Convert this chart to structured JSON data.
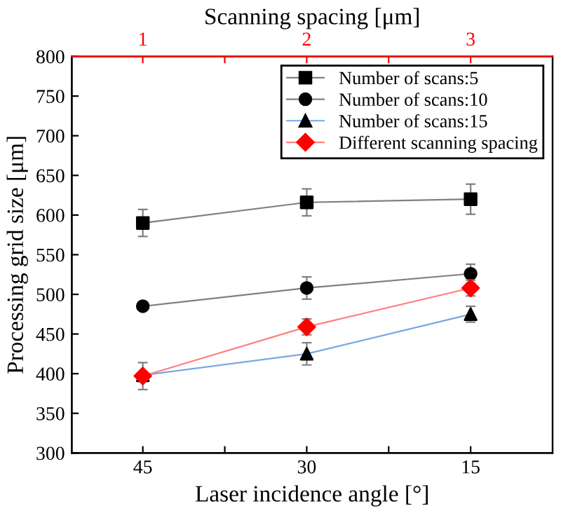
{
  "chart_data": {
    "type": "line",
    "xlabel": "Laser incidence angle [°]",
    "ylabel": "Processing grid size [μm]",
    "x2label": "Scanning spacing [μm]",
    "xlim": [
      51.5,
      7.5
    ],
    "xticks": [
      45,
      {
        "value": 37.5,
        "label": null
      },
      30,
      {
        "value": 22.5,
        "label": null
      },
      15
    ],
    "x2lim": [
      0.567,
      3.5
    ],
    "x2ticks": [
      1,
      {
        "value": 1.5,
        "label": null
      },
      2,
      {
        "value": 2.5,
        "label": null
      },
      3
    ],
    "ylim": [
      300,
      800
    ],
    "yticks": [
      300,
      350,
      400,
      450,
      500,
      550,
      600,
      650,
      700,
      750,
      800
    ],
    "legend": "top right",
    "grid": false,
    "series": [
      {
        "name": "Number of scans:5",
        "color": "#808080",
        "colors": [
          "#000000",
          "#000000",
          "#000000"
        ],
        "marker": "square",
        "x": [
          45,
          30,
          15
        ],
        "values": [
          590,
          616,
          620
        ],
        "errors": [
          17,
          17,
          19
        ]
      },
      {
        "name": "Number of scans:10",
        "color": "#808080",
        "colors": [
          "#000000",
          "#000000",
          "#000000"
        ],
        "marker": "circle",
        "x": [
          45,
          30,
          15
        ],
        "values": [
          485,
          508,
          526
        ],
        "errors": [
          null,
          14,
          12
        ]
      },
      {
        "name": "Number of scans:15",
        "color": "#7aa6e6",
        "colors": [
          "#000000",
          "#000000",
          "#000000"
        ],
        "marker": "triangle",
        "x": [
          45,
          30,
          15
        ],
        "values": [
          398,
          425,
          475
        ],
        "errors": [
          null,
          14,
          10
        ]
      },
      {
        "name": "Different scanning spacing",
        "color": "#ff8080",
        "colors": [
          "#ff0000",
          "#ff0000",
          "#ff0000"
        ],
        "marker": "diamond",
        "axis": "x2",
        "x": [
          1,
          2,
          3
        ],
        "values": [
          397,
          459,
          508
        ],
        "errors": [
          17,
          10,
          10
        ]
      }
    ]
  }
}
